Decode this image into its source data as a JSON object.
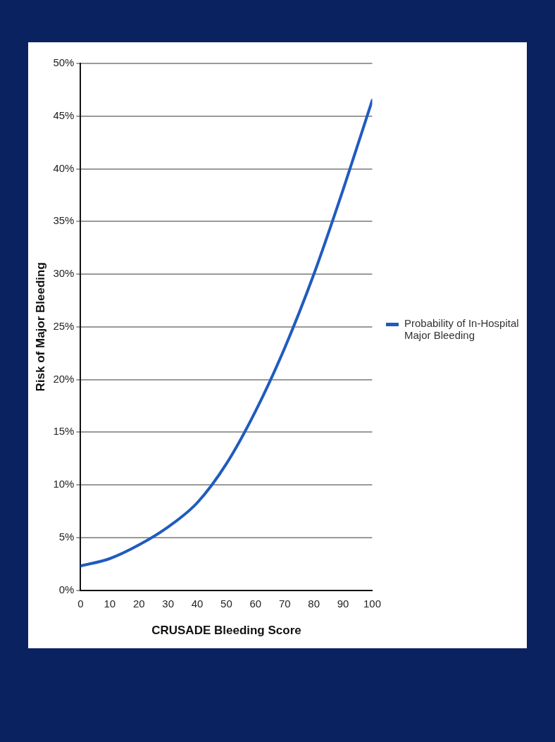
{
  "chart_data": {
    "type": "line",
    "xlabel": "CRUSADE Bleeding Score",
    "ylabel": "Risk of Major Bleeding",
    "x": [
      0,
      10,
      20,
      30,
      40,
      50,
      60,
      70,
      80,
      90,
      100
    ],
    "series": [
      {
        "name": "Probability of In-Hospital Major Bleeding",
        "color": "#1f5bbf",
        "values": [
          2.3,
          3,
          4.3,
          6,
          8.3,
          12,
          17,
          23,
          30,
          38,
          46.5
        ]
      }
    ],
    "xlim": [
      0,
      100
    ],
    "xticks": [
      0,
      10,
      20,
      30,
      40,
      50,
      60,
      70,
      80,
      90,
      100
    ],
    "ylim": [
      0,
      50
    ],
    "yticks": [
      {
        "value": 0,
        "label": "0%"
      },
      {
        "value": 5,
        "label": "5%"
      },
      {
        "value": 10,
        "label": "10%"
      },
      {
        "value": 15,
        "label": "15%"
      },
      {
        "value": 20,
        "label": "20%"
      },
      {
        "value": 25,
        "label": "25%"
      },
      {
        "value": 30,
        "label": "30%"
      },
      {
        "value": 35,
        "label": "35%"
      },
      {
        "value": 40,
        "label": "40%"
      },
      {
        "value": 45,
        "label": "45%"
      },
      {
        "value": 50,
        "label": "50%"
      }
    ],
    "grid": "y",
    "legend": "right",
    "marker": "none",
    "line_style": "solid"
  }
}
